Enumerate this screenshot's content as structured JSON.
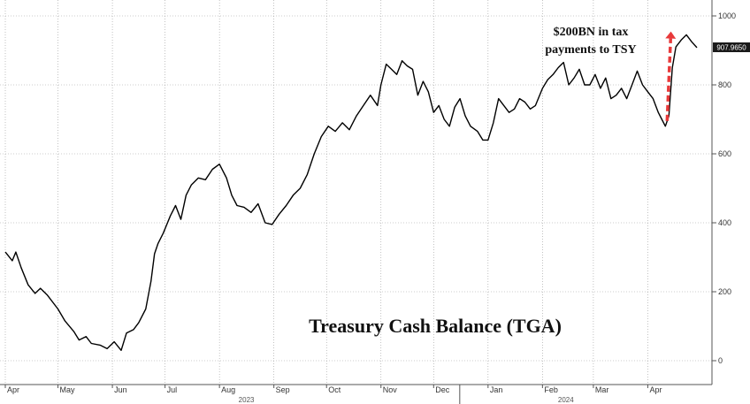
{
  "chart_data": {
    "type": "line",
    "title": "Treasury Cash Balance (TGA)",
    "annotation": "$200BN in tax payments to TSY",
    "annotation_lines": [
      "$200BN in tax",
      "payments to TSY"
    ],
    "last_value_label": "907.9650",
    "xlabel": "",
    "ylabel": "",
    "ylim": [
      -60,
      1030
    ],
    "y_ticks": [
      0,
      200,
      400,
      600,
      800,
      1000
    ],
    "y_tick_labels": [
      "0",
      "200",
      "400",
      "600",
      "800",
      "1000"
    ],
    "x_range": [
      "2023-04-01",
      "2024-04-30"
    ],
    "month_ticks": [
      {
        "label": "Apr",
        "date": "2023-04-01"
      },
      {
        "label": "May",
        "date": "2023-05-01"
      },
      {
        "label": "Jun",
        "date": "2023-06-01"
      },
      {
        "label": "Jul",
        "date": "2023-07-01"
      },
      {
        "label": "Aug",
        "date": "2023-08-01"
      },
      {
        "label": "Sep",
        "date": "2023-09-01"
      },
      {
        "label": "Oct",
        "date": "2023-10-01"
      },
      {
        "label": "Nov",
        "date": "2023-11-01"
      },
      {
        "label": "Dec",
        "date": "2023-12-01"
      },
      {
        "label": "Jan",
        "date": "2024-01-01"
      },
      {
        "label": "Feb",
        "date": "2024-02-01"
      },
      {
        "label": "Mar",
        "date": "2024-03-01"
      },
      {
        "label": "Apr",
        "date": "2024-04-01"
      }
    ],
    "year_labels": [
      {
        "label": "2023",
        "date": "2023-09-01"
      },
      {
        "label": "2024",
        "date": "2024-03-01"
      }
    ],
    "grid": true,
    "series": [
      {
        "name": "",
        "color": "#000000",
        "points": [
          [
            "2023-04-01",
            315
          ],
          [
            "2023-04-05",
            290
          ],
          [
            "2023-04-07",
            315
          ],
          [
            "2023-04-10",
            270
          ],
          [
            "2023-04-14",
            220
          ],
          [
            "2023-04-18",
            195
          ],
          [
            "2023-04-21",
            210
          ],
          [
            "2023-04-25",
            190
          ],
          [
            "2023-05-01",
            150
          ],
          [
            "2023-05-05",
            115
          ],
          [
            "2023-05-10",
            85
          ],
          [
            "2023-05-13",
            60
          ],
          [
            "2023-05-17",
            70
          ],
          [
            "2023-05-20",
            50
          ],
          [
            "2023-05-25",
            45
          ],
          [
            "2023-05-29",
            35
          ],
          [
            "2023-06-02",
            55
          ],
          [
            "2023-06-06",
            30
          ],
          [
            "2023-06-09",
            80
          ],
          [
            "2023-06-13",
            90
          ],
          [
            "2023-06-16",
            110
          ],
          [
            "2023-06-20",
            150
          ],
          [
            "2023-06-23",
            230
          ],
          [
            "2023-06-25",
            310
          ],
          [
            "2023-06-27",
            340
          ],
          [
            "2023-06-30",
            370
          ],
          [
            "2023-07-04",
            420
          ],
          [
            "2023-07-07",
            450
          ],
          [
            "2023-07-10",
            410
          ],
          [
            "2023-07-13",
            480
          ],
          [
            "2023-07-16",
            510
          ],
          [
            "2023-07-20",
            530
          ],
          [
            "2023-07-24",
            525
          ],
          [
            "2023-07-28",
            555
          ],
          [
            "2023-08-01",
            570
          ],
          [
            "2023-08-05",
            530
          ],
          [
            "2023-08-08",
            480
          ],
          [
            "2023-08-11",
            450
          ],
          [
            "2023-08-15",
            445
          ],
          [
            "2023-08-19",
            430
          ],
          [
            "2023-08-23",
            455
          ],
          [
            "2023-08-27",
            400
          ],
          [
            "2023-08-31",
            395
          ],
          [
            "2023-09-04",
            425
          ],
          [
            "2023-09-08",
            450
          ],
          [
            "2023-09-12",
            480
          ],
          [
            "2023-09-16",
            500
          ],
          [
            "2023-09-20",
            540
          ],
          [
            "2023-09-24",
            600
          ],
          [
            "2023-09-28",
            650
          ],
          [
            "2023-10-02",
            680
          ],
          [
            "2023-10-06",
            665
          ],
          [
            "2023-10-10",
            690
          ],
          [
            "2023-10-14",
            670
          ],
          [
            "2023-10-18",
            710
          ],
          [
            "2023-10-22",
            740
          ],
          [
            "2023-10-26",
            770
          ],
          [
            "2023-10-30",
            740
          ],
          [
            "2023-11-01",
            800
          ],
          [
            "2023-11-04",
            860
          ],
          [
            "2023-11-07",
            845
          ],
          [
            "2023-11-10",
            830
          ],
          [
            "2023-11-13",
            870
          ],
          [
            "2023-11-16",
            855
          ],
          [
            "2023-11-19",
            845
          ],
          [
            "2023-11-22",
            770
          ],
          [
            "2023-11-25",
            810
          ],
          [
            "2023-11-28",
            780
          ],
          [
            "2023-12-01",
            720
          ],
          [
            "2023-12-04",
            740
          ],
          [
            "2023-12-07",
            700
          ],
          [
            "2023-12-10",
            680
          ],
          [
            "2023-12-13",
            735
          ],
          [
            "2023-12-16",
            760
          ],
          [
            "2023-12-19",
            710
          ],
          [
            "2023-12-22",
            680
          ],
          [
            "2023-12-26",
            665
          ],
          [
            "2023-12-29",
            640
          ],
          [
            "2024-01-01",
            640
          ],
          [
            "2024-01-04",
            690
          ],
          [
            "2024-01-07",
            760
          ],
          [
            "2024-01-10",
            740
          ],
          [
            "2024-01-13",
            720
          ],
          [
            "2024-01-16",
            730
          ],
          [
            "2024-01-19",
            760
          ],
          [
            "2024-01-22",
            750
          ],
          [
            "2024-01-25",
            730
          ],
          [
            "2024-01-28",
            740
          ],
          [
            "2024-02-01",
            790
          ],
          [
            "2024-02-04",
            815
          ],
          [
            "2024-02-07",
            830
          ],
          [
            "2024-02-10",
            850
          ],
          [
            "2024-02-13",
            865
          ],
          [
            "2024-02-16",
            800
          ],
          [
            "2024-02-19",
            820
          ],
          [
            "2024-02-22",
            845
          ],
          [
            "2024-02-25",
            800
          ],
          [
            "2024-02-28",
            800
          ],
          [
            "2024-03-02",
            830
          ],
          [
            "2024-03-05",
            790
          ],
          [
            "2024-03-08",
            820
          ],
          [
            "2024-03-11",
            760
          ],
          [
            "2024-03-14",
            770
          ],
          [
            "2024-03-17",
            790
          ],
          [
            "2024-03-20",
            760
          ],
          [
            "2024-03-23",
            800
          ],
          [
            "2024-03-26",
            840
          ],
          [
            "2024-03-29",
            800
          ],
          [
            "2024-04-01",
            780
          ],
          [
            "2024-04-04",
            760
          ],
          [
            "2024-04-07",
            720
          ],
          [
            "2024-04-09",
            700
          ],
          [
            "2024-04-11",
            680
          ],
          [
            "2024-04-13",
            710
          ],
          [
            "2024-04-15",
            850
          ],
          [
            "2024-04-17",
            910
          ],
          [
            "2024-04-20",
            930
          ],
          [
            "2024-04-23",
            945
          ],
          [
            "2024-04-26",
            925
          ],
          [
            "2024-04-29",
            908
          ]
        ]
      }
    ],
    "annotation_arrow": {
      "color": "#e8393a",
      "from": [
        "2024-04-11",
        680
      ],
      "to": [
        "2024-04-13",
        960
      ]
    }
  }
}
